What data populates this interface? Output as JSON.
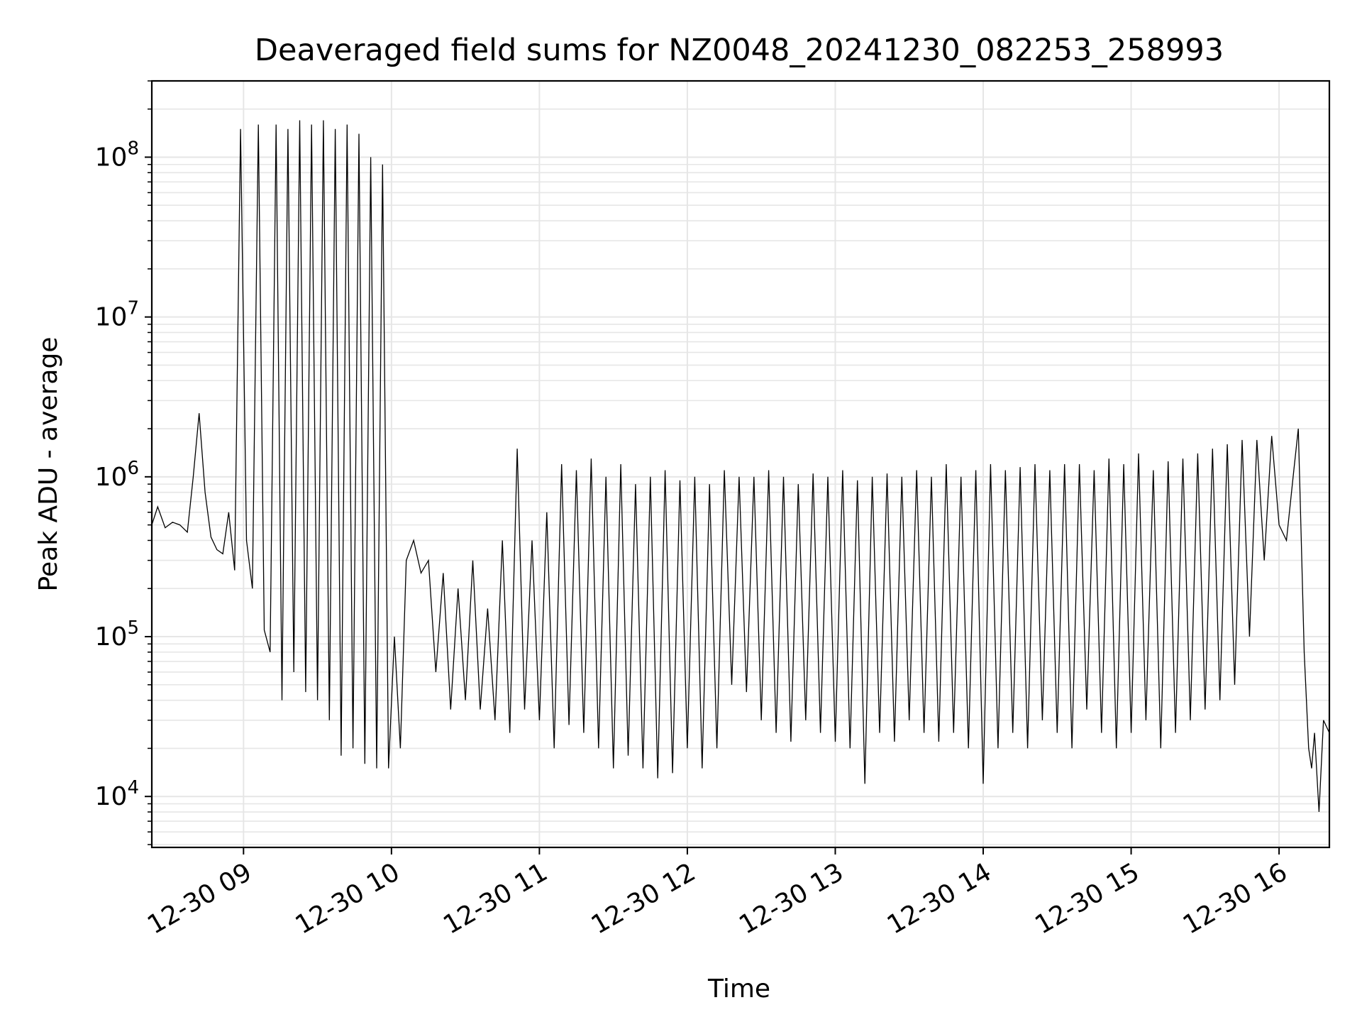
{
  "chart_data": {
    "type": "line",
    "title": "Deaveraged field sums for NZ0048_20241230_082253_258993",
    "xlabel": "Time",
    "ylabel": "Peak ADU - average",
    "yscale": "log",
    "grid": true,
    "line_color": "#000000",
    "grid_color": "#e6e6e6",
    "x_start": "12-30 08:22:53",
    "x_end": "12-30 16:20",
    "xlim_hours": [
      8.38,
      16.34
    ],
    "ylim": [
      4800,
      300000000
    ],
    "x_ticks": [
      {
        "hour": 9,
        "label": "12-30 09"
      },
      {
        "hour": 10,
        "label": "12-30 10"
      },
      {
        "hour": 11,
        "label": "12-30 11"
      },
      {
        "hour": 12,
        "label": "12-30 12"
      },
      {
        "hour": 13,
        "label": "12-30 13"
      },
      {
        "hour": 14,
        "label": "12-30 14"
      },
      {
        "hour": 15,
        "label": "12-30 15"
      },
      {
        "hour": 16,
        "label": "12-30 16"
      }
    ],
    "y_ticks": [
      {
        "value": 10000,
        "base": "10",
        "exp": "4"
      },
      {
        "value": 100000,
        "base": "10",
        "exp": "5"
      },
      {
        "value": 1000000,
        "base": "10",
        "exp": "6"
      },
      {
        "value": 10000000,
        "base": "10",
        "exp": "7"
      },
      {
        "value": 100000000,
        "base": "10",
        "exp": "8"
      }
    ],
    "series": [
      {
        "hours": [
          8.38,
          8.42,
          8.47,
          8.52,
          8.57,
          8.62,
          8.66,
          8.7,
          8.74,
          8.78,
          8.82,
          8.86,
          8.9,
          8.94,
          8.98,
          9.02,
          9.06,
          9.1,
          9.14,
          9.18,
          9.22,
          9.26,
          9.3,
          9.34,
          9.38,
          9.42,
          9.46,
          9.5,
          9.54,
          9.58,
          9.62,
          9.66,
          9.7,
          9.74,
          9.78,
          9.82,
          9.86,
          9.9,
          9.94,
          9.98,
          10.02,
          10.06,
          10.1,
          10.15,
          10.2,
          10.25,
          10.3,
          10.35,
          10.4,
          10.45,
          10.5,
          10.55,
          10.6,
          10.65,
          10.7,
          10.75,
          10.8,
          10.85,
          10.9,
          10.95,
          11.0,
          11.05,
          11.1,
          11.15,
          11.2,
          11.25,
          11.3,
          11.35,
          11.4,
          11.45,
          11.5,
          11.55,
          11.6,
          11.65,
          11.7,
          11.75,
          11.8,
          11.85,
          11.9,
          11.95,
          12.0,
          12.05,
          12.1,
          12.15,
          12.2,
          12.25,
          12.3,
          12.35,
          12.4,
          12.45,
          12.5,
          12.55,
          12.6,
          12.65,
          12.7,
          12.75,
          12.8,
          12.85,
          12.9,
          12.95,
          13.0,
          13.05,
          13.1,
          13.15,
          13.2,
          13.25,
          13.3,
          13.35,
          13.4,
          13.45,
          13.5,
          13.55,
          13.6,
          13.65,
          13.7,
          13.75,
          13.8,
          13.85,
          13.9,
          13.95,
          14.0,
          14.05,
          14.1,
          14.15,
          14.2,
          14.25,
          14.3,
          14.35,
          14.4,
          14.45,
          14.5,
          14.55,
          14.6,
          14.65,
          14.7,
          14.75,
          14.8,
          14.85,
          14.9,
          14.95,
          15.0,
          15.05,
          15.1,
          15.15,
          15.2,
          15.25,
          15.3,
          15.35,
          15.4,
          15.45,
          15.5,
          15.55,
          15.6,
          15.65,
          15.7,
          15.75,
          15.8,
          15.85,
          15.9,
          15.95,
          16.0,
          16.05,
          16.1,
          16.13,
          16.15,
          16.17,
          16.2,
          16.22,
          16.24,
          16.27,
          16.3,
          16.34
        ],
        "values": [
          500000,
          650000,
          480000,
          520000,
          500000,
          450000,
          1000000,
          2500000,
          800000,
          420000,
          350000,
          330000,
          600000,
          260000,
          150000000,
          400000,
          200000,
          160000000,
          110000,
          80000,
          160000000,
          40000,
          150000000,
          60000,
          170000000,
          45000,
          160000000,
          40000,
          170000000,
          30000,
          150000000,
          18000,
          160000000,
          20000,
          140000000,
          16000,
          100000000,
          15000,
          90000000,
          15000,
          100000,
          20000,
          300000,
          400000,
          250000,
          300000,
          60000,
          250000,
          35000,
          200000,
          40000,
          300000,
          35000,
          150000,
          30000,
          400000,
          25000,
          1500000,
          35000,
          400000,
          30000,
          600000,
          20000,
          1200000,
          28000,
          1100000,
          25000,
          1300000,
          20000,
          1000000,
          15000,
          1200000,
          18000,
          900000,
          15000,
          1000000,
          13000,
          1100000,
          14000,
          950000,
          20000,
          1000000,
          15000,
          900000,
          20000,
          1100000,
          50000,
          1000000,
          45000,
          1000000,
          30000,
          1100000,
          25000,
          1000000,
          22000,
          900000,
          30000,
          1050000,
          25000,
          1000000,
          22000,
          1100000,
          20000,
          950000,
          12000,
          1000000,
          25000,
          1050000,
          22000,
          1000000,
          30000,
          1100000,
          25000,
          1000000,
          22000,
          1200000,
          25000,
          1000000,
          20000,
          1100000,
          12000,
          1200000,
          20000,
          1100000,
          25000,
          1150000,
          20000,
          1200000,
          30000,
          1100000,
          25000,
          1200000,
          20000,
          1200000,
          35000,
          1100000,
          25000,
          1300000,
          20000,
          1200000,
          25000,
          1400000,
          30000,
          1100000,
          20000,
          1250000,
          25000,
          1300000,
          30000,
          1400000,
          35000,
          1500000,
          40000,
          1600000,
          50000,
          1700000,
          100000,
          1700000,
          300000,
          1800000,
          500000,
          400000,
          1100000,
          2000000,
          400000,
          80000,
          20000,
          15000,
          25000,
          8000,
          30000,
          25000
        ]
      }
    ]
  }
}
